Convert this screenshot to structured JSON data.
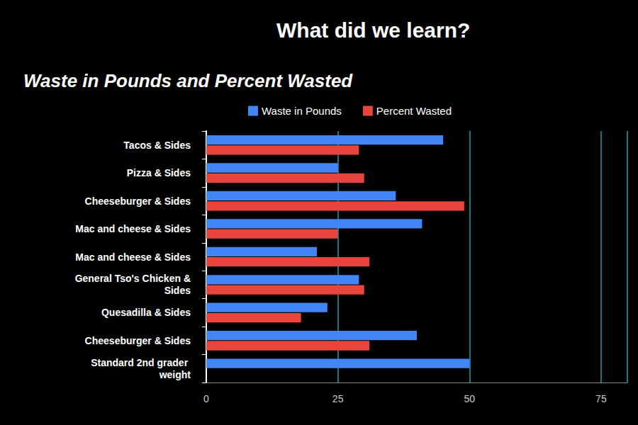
{
  "chart_data": {
    "type": "bar",
    "orientation": "horizontal",
    "title": "What did we learn?",
    "subtitle": "Waste in Pounds and Percent Wasted",
    "categories": [
      "Tacos & Sides",
      "Pizza & Sides",
      "Cheeseburger & Sides",
      "Mac and cheese & Sides",
      "Mac and cheese & Sides",
      "General Tso's Chicken & Sides",
      "Quesadilla & Sides",
      "Cheeseburger & Sides",
      "Standard 2nd grader weight"
    ],
    "series": [
      {
        "name": "Waste in Pounds",
        "color": "#4285f4",
        "values": [
          45,
          25,
          36,
          41,
          21,
          29,
          23,
          40,
          50
        ]
      },
      {
        "name": "Percent Wasted",
        "color": "#e8453c",
        "values": [
          29,
          30,
          49,
          25,
          31,
          30,
          18,
          31,
          null
        ]
      }
    ],
    "xlim": [
      0,
      80
    ],
    "xticks": [
      0,
      25,
      50,
      75
    ],
    "grid": true,
    "legend": "top"
  }
}
